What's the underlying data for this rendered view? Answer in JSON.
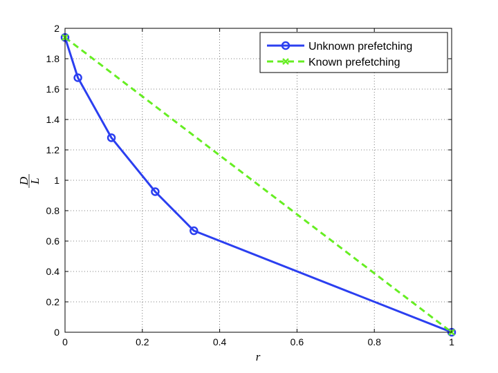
{
  "chart_data": {
    "type": "line",
    "title": "",
    "xlabel": "r",
    "ylabel_num": "D",
    "ylabel_den": "L",
    "xlim": [
      0,
      1
    ],
    "ylim": [
      0,
      2
    ],
    "xticks": [
      0,
      0.2,
      0.4,
      0.6,
      0.8,
      1
    ],
    "yticks": [
      0,
      0.2,
      0.4,
      0.6,
      0.8,
      1,
      1.2,
      1.4,
      1.6,
      1.8,
      2
    ],
    "grid": true,
    "legend_position": "top-right",
    "series": [
      {
        "name": "Unknown prefetching",
        "color": "#2b3ff0",
        "marker": "circle",
        "line_style": "solid",
        "x": [
          0,
          0.0333,
          0.12,
          0.2333,
          0.3333,
          1
        ],
        "y": [
          1.94,
          1.675,
          1.28,
          0.925,
          0.668,
          0
        ]
      },
      {
        "name": "Known prefetching",
        "color": "#66ee22",
        "marker": "x",
        "line_style": "dashed",
        "x": [
          0,
          1
        ],
        "y": [
          1.94,
          0
        ]
      }
    ]
  }
}
